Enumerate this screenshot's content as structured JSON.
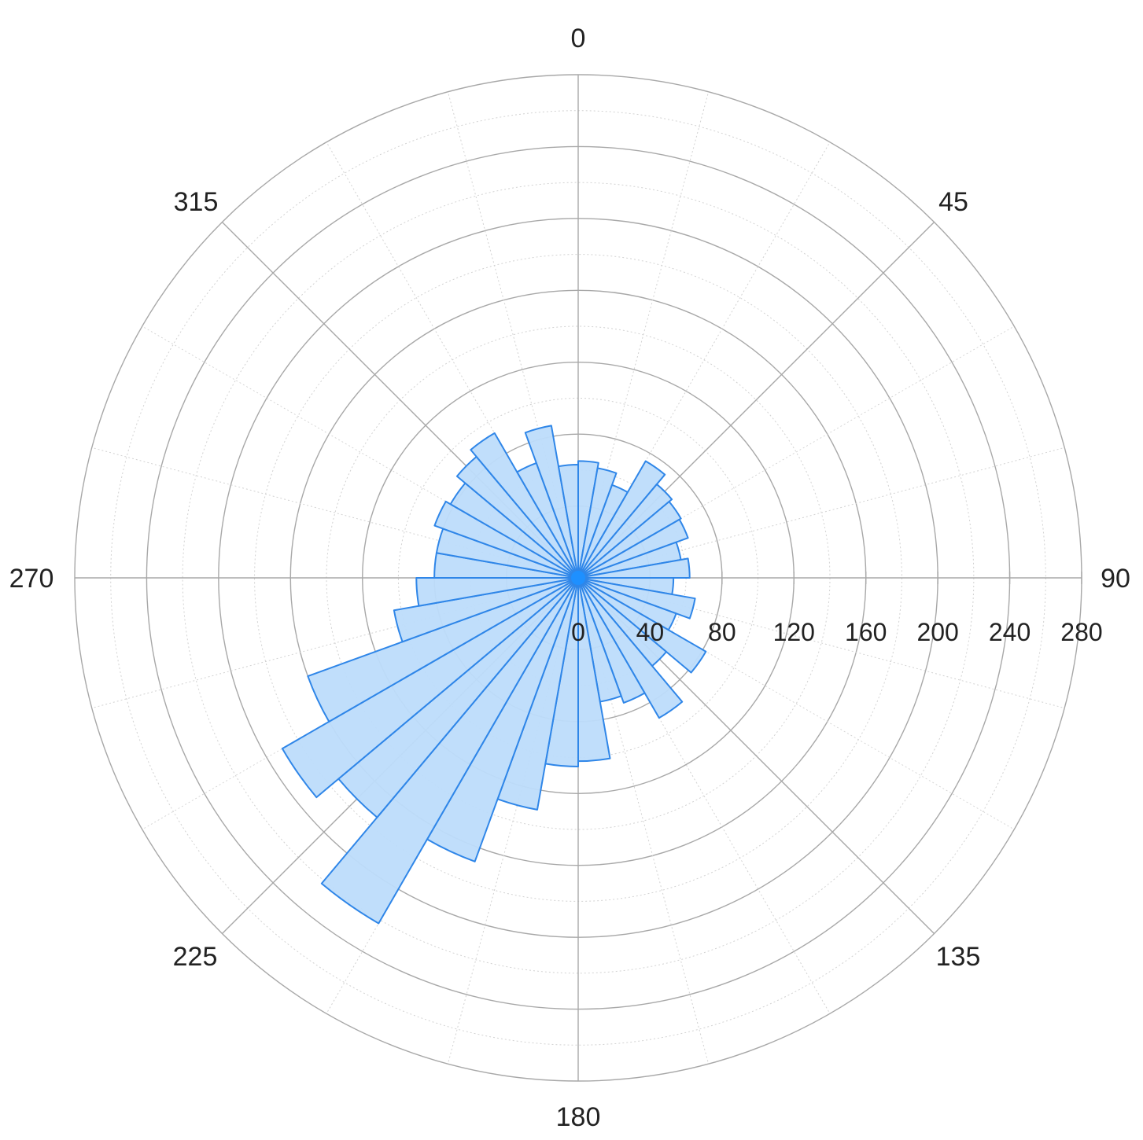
{
  "chart_data": {
    "type": "bar",
    "subtype": "polar-rose",
    "angle_direction": "clockwise",
    "zero_at": "top",
    "r_max": 280,
    "bin_width_deg": 10,
    "angular_ticks": [
      "0",
      "45",
      "90",
      "135",
      "180",
      "225",
      "270",
      "315"
    ],
    "radial_ticks": [
      "0",
      "40",
      "80",
      "120",
      "160",
      "200",
      "240",
      "280"
    ],
    "radial_tick_values": [
      0,
      40,
      80,
      120,
      160,
      200,
      240,
      280
    ],
    "bins": [
      {
        "start": 0,
        "value": 65
      },
      {
        "start": 10,
        "value": 62
      },
      {
        "start": 20,
        "value": 55
      },
      {
        "start": 30,
        "value": 75
      },
      {
        "start": 40,
        "value": 68
      },
      {
        "start": 50,
        "value": 66
      },
      {
        "start": 60,
        "value": 65
      },
      {
        "start": 70,
        "value": 58
      },
      {
        "start": 80,
        "value": 62
      },
      {
        "start": 90,
        "value": 53
      },
      {
        "start": 100,
        "value": 66
      },
      {
        "start": 110,
        "value": 58
      },
      {
        "start": 120,
        "value": 82
      },
      {
        "start": 130,
        "value": 64
      },
      {
        "start": 140,
        "value": 90
      },
      {
        "start": 150,
        "value": 74
      },
      {
        "start": 160,
        "value": 70
      },
      {
        "start": 170,
        "value": 102
      },
      {
        "start": 180,
        "value": 105
      },
      {
        "start": 190,
        "value": 131
      },
      {
        "start": 200,
        "value": 168
      },
      {
        "start": 210,
        "value": 222
      },
      {
        "start": 220,
        "value": 174
      },
      {
        "start": 230,
        "value": 190
      },
      {
        "start": 240,
        "value": 160
      },
      {
        "start": 250,
        "value": 104
      },
      {
        "start": 260,
        "value": 90
      },
      {
        "start": 270,
        "value": 80
      },
      {
        "start": 280,
        "value": 80
      },
      {
        "start": 290,
        "value": 85
      },
      {
        "start": 300,
        "value": 82
      },
      {
        "start": 310,
        "value": 88
      },
      {
        "start": 320,
        "value": 93
      },
      {
        "start": 330,
        "value": 68
      },
      {
        "start": 340,
        "value": 86
      },
      {
        "start": 350,
        "value": 63
      }
    ],
    "grid": true,
    "legend": "none"
  },
  "colors": {
    "bar_fill": "#bddcfb",
    "bar_stroke": "#2f86e8",
    "center_dot": "#1e90ff",
    "grid_major": "#a8a8a8",
    "grid_minor": "#d2d2d2",
    "label": "#222222"
  }
}
